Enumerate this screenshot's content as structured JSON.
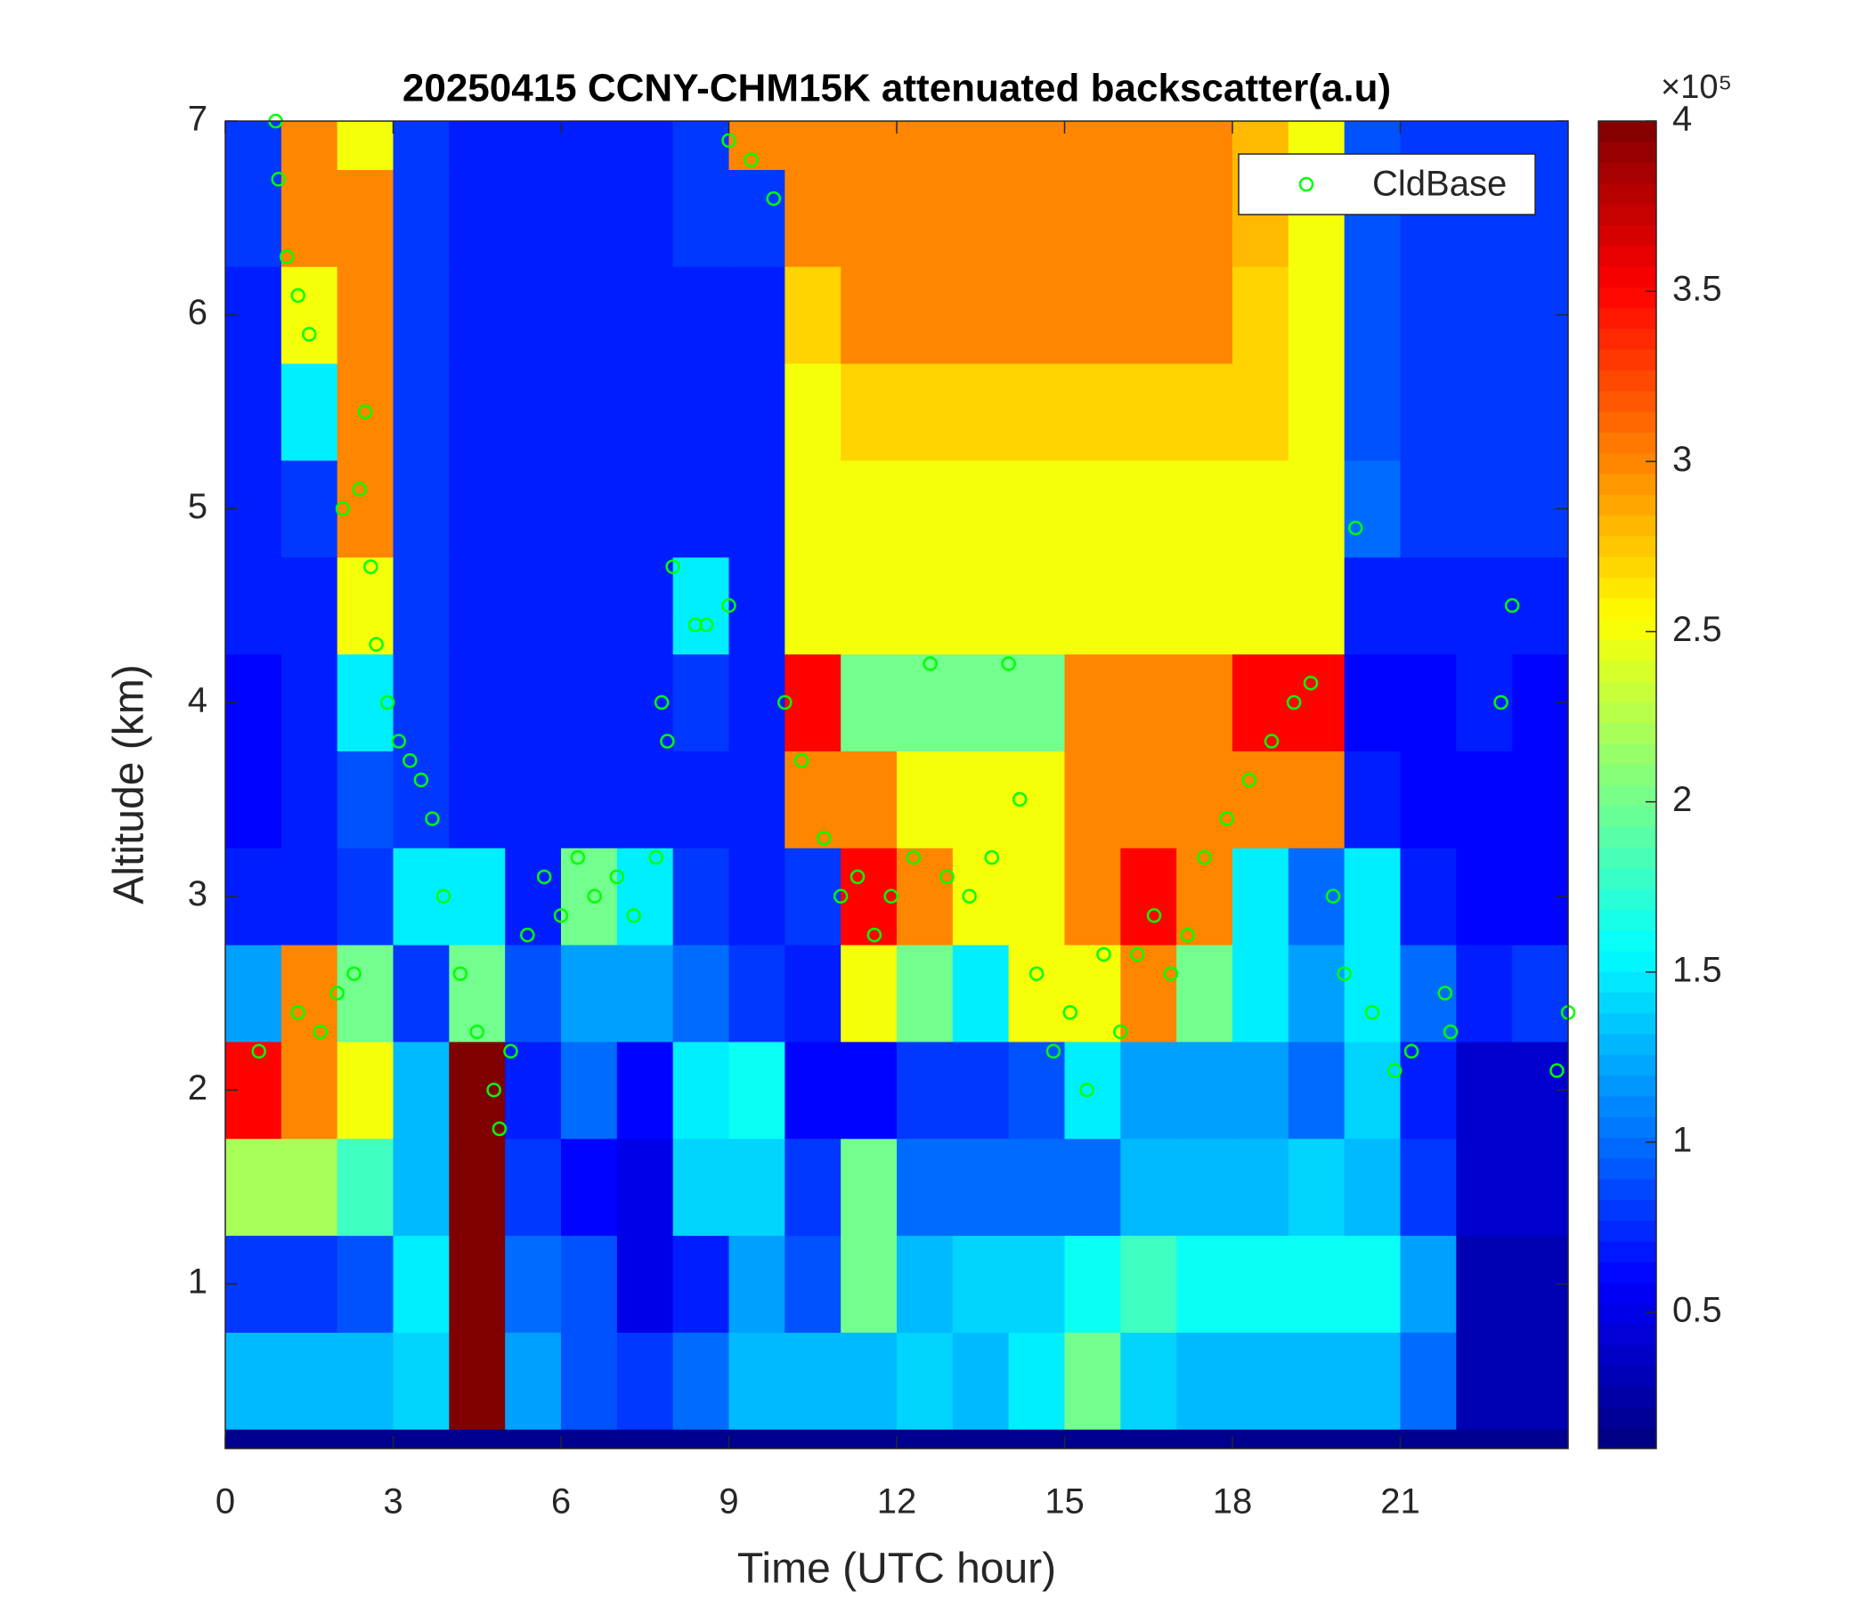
{
  "chart_data": {
    "type": "heatmap",
    "title": "20250415 CCNY-CHM15K attenuated backscatter(a.u)",
    "xlabel": "Time (UTC hour)",
    "ylabel": "Altitude (km)",
    "xlim": [
      0,
      24
    ],
    "xticks": [
      0,
      3,
      6,
      9,
      12,
      15,
      18,
      21
    ],
    "ylim": [
      0.15,
      7
    ],
    "yticks": [
      1,
      2,
      3,
      4,
      5,
      6,
      7
    ],
    "colormap": "jet",
    "clim": [
      0.1,
      4
    ],
    "cticks": [
      0.5,
      1,
      1.5,
      2,
      2.5,
      3,
      3.5,
      4
    ],
    "colorbar_exponent": "×10⁵",
    "x": [
      0.5,
      1.5,
      2.5,
      3.5,
      4.5,
      5.5,
      6.5,
      7.5,
      8.5,
      9.5,
      10.5,
      11.5,
      12.5,
      13.5,
      14.5,
      15.5,
      16.5,
      17.5,
      18.5,
      19.5,
      20.5,
      21.5,
      22.5,
      23.5
    ],
    "y": [
      0.5,
      1,
      1.5,
      2,
      2.5,
      3,
      3.5,
      4,
      4.5,
      5,
      5.5,
      6,
      6.5,
      7
    ],
    "z": [
      [
        1.3,
        1.3,
        1.3,
        1.4,
        4,
        1.2,
        0.9,
        0.8,
        1.0,
        1.3,
        1.3,
        1.3,
        1.4,
        1.3,
        1.5,
        2.0,
        1.4,
        1.3,
        1.3,
        1.3,
        1.3,
        1.0,
        0.3,
        0.3
      ],
      [
        0.8,
        0.8,
        0.9,
        1.5,
        4,
        1.0,
        0.9,
        0.5,
        0.7,
        1.2,
        0.9,
        2.0,
        1.3,
        1.4,
        1.4,
        1.6,
        1.8,
        1.6,
        1.6,
        1.6,
        1.6,
        1.2,
        0.3,
        0.3
      ],
      [
        2.2,
        2.2,
        1.8,
        1.3,
        4,
        0.8,
        0.6,
        0.5,
        1.4,
        1.4,
        0.8,
        2.0,
        1.0,
        1.0,
        1.0,
        1.0,
        1.3,
        1.3,
        1.3,
        1.4,
        1.3,
        0.8,
        0.4,
        0.4
      ],
      [
        3.5,
        3.0,
        2.5,
        1.3,
        4,
        0.7,
        1.0,
        0.6,
        1.5,
        1.6,
        0.6,
        0.6,
        0.8,
        0.8,
        0.9,
        1.5,
        1.2,
        1.2,
        1.2,
        1.0,
        1.4,
        0.7,
        0.4,
        0.4
      ],
      [
        1.2,
        3.0,
        2.0,
        0.8,
        2.0,
        0.9,
        1.2,
        1.2,
        1.0,
        0.8,
        0.7,
        2.5,
        2.0,
        1.5,
        2.5,
        2.5,
        3.0,
        2.0,
        1.5,
        1.2,
        1.5,
        1.0,
        0.7,
        0.8
      ],
      [
        0.7,
        0.7,
        0.8,
        1.5,
        1.5,
        0.7,
        2.0,
        1.5,
        0.8,
        0.7,
        0.8,
        3.5,
        3.0,
        2.5,
        2.5,
        3.0,
        3.5,
        3.0,
        1.5,
        1.0,
        1.5,
        0.7,
        0.6,
        0.6
      ],
      [
        0.6,
        0.7,
        0.9,
        0.8,
        0.7,
        0.7,
        0.7,
        0.7,
        0.7,
        0.7,
        3.0,
        3.0,
        2.5,
        2.5,
        2.5,
        3.0,
        3.0,
        3.0,
        3.0,
        3.0,
        0.7,
        0.6,
        0.6,
        0.6
      ],
      [
        0.6,
        0.7,
        1.5,
        0.8,
        0.7,
        0.7,
        0.7,
        0.7,
        0.8,
        0.7,
        3.5,
        2.0,
        2.0,
        2.0,
        2.0,
        3.0,
        3.0,
        3.0,
        3.5,
        3.5,
        0.6,
        0.6,
        0.7,
        0.6
      ],
      [
        0.7,
        0.7,
        2.5,
        0.8,
        0.7,
        0.7,
        0.7,
        0.7,
        1.5,
        0.7,
        2.5,
        2.5,
        2.5,
        2.5,
        2.5,
        2.5,
        2.5,
        2.5,
        2.5,
        2.5,
        0.7,
        0.7,
        0.7,
        0.7
      ],
      [
        0.7,
        0.8,
        3.0,
        0.8,
        0.7,
        0.7,
        0.7,
        0.7,
        0.7,
        0.7,
        2.5,
        2.5,
        2.5,
        2.5,
        2.5,
        2.5,
        2.5,
        2.5,
        2.5,
        2.5,
        1.0,
        0.8,
        0.8,
        0.8
      ],
      [
        0.7,
        1.5,
        3.0,
        0.8,
        0.7,
        0.7,
        0.7,
        0.7,
        0.7,
        0.7,
        2.5,
        2.7,
        2.7,
        2.7,
        2.7,
        2.7,
        2.7,
        2.7,
        2.7,
        2.5,
        0.9,
        0.8,
        0.8,
        0.8
      ],
      [
        0.7,
        2.5,
        3.0,
        0.8,
        0.7,
        0.7,
        0.7,
        0.7,
        0.7,
        0.7,
        2.7,
        3.0,
        3.0,
        3.0,
        3.0,
        3.0,
        3.0,
        3.0,
        2.7,
        2.5,
        0.9,
        0.8,
        0.8,
        0.8
      ],
      [
        0.8,
        3.0,
        3.0,
        0.8,
        0.7,
        0.7,
        0.7,
        0.7,
        0.8,
        0.8,
        3.0,
        3.0,
        3.0,
        3.0,
        3.0,
        3.0,
        3.0,
        3.0,
        2.8,
        2.5,
        0.9,
        0.8,
        0.8,
        0.8
      ],
      [
        0.8,
        3.0,
        2.5,
        0.8,
        0.7,
        0.7,
        0.7,
        0.7,
        0.8,
        3.0,
        3.0,
        3.0,
        3.0,
        3.0,
        3.0,
        3.0,
        3.0,
        3.0,
        2.8,
        2.5,
        0.9,
        0.8,
        0.8,
        0.8
      ]
    ],
    "series": [
      {
        "name": "CldBase",
        "color": "#00ff00",
        "type": "scatter",
        "x": [
          0.9,
          0.95,
          1.1,
          1.3,
          1.5,
          0.6,
          1.3,
          1.7,
          2.0,
          2.3,
          2.1,
          2.4,
          2.5,
          2.6,
          2.7,
          2.9,
          3.1,
          3.3,
          3.5,
          3.7,
          3.9,
          4.2,
          4.5,
          4.8,
          4.9,
          5.1,
          5.4,
          5.7,
          6.0,
          6.3,
          6.6,
          7.0,
          7.3,
          7.7,
          7.8,
          7.9,
          8.0,
          8.4,
          8.6,
          9.0,
          9.0,
          9.4,
          9.8,
          10.0,
          10.3,
          10.7,
          11.0,
          11.3,
          11.6,
          11.9,
          12.3,
          12.6,
          12.9,
          13.3,
          13.7,
          14.0,
          14.2,
          14.5,
          14.8,
          15.1,
          15.4,
          15.7,
          16.0,
          16.3,
          16.6,
          16.9,
          17.2,
          17.5,
          17.9,
          18.3,
          18.7,
          19.1,
          19.4,
          19.8,
          20.0,
          20.2,
          20.5,
          20.9,
          21.2,
          21.8,
          21.9,
          22.8,
          23.0,
          23.8,
          24.0
        ],
        "values": [
          7,
          6.7,
          6.3,
          6.1,
          5.9,
          2.2,
          2.4,
          2.3,
          2.5,
          2.6,
          5.0,
          5.1,
          5.5,
          4.7,
          4.3,
          4.0,
          3.8,
          3.7,
          3.6,
          3.4,
          3.0,
          2.6,
          2.3,
          2.0,
          1.8,
          2.2,
          2.8,
          3.1,
          2.9,
          3.2,
          3.0,
          3.1,
          2.9,
          3.2,
          4.0,
          3.8,
          4.7,
          4.4,
          4.4,
          4.5,
          6.9,
          6.8,
          6.6,
          4.0,
          3.7,
          3.3,
          3.0,
          3.1,
          2.8,
          3.0,
          3.2,
          4.2,
          3.1,
          3.0,
          3.2,
          4.2,
          3.5,
          2.6,
          2.2,
          2.4,
          2.0,
          2.7,
          2.3,
          2.7,
          2.9,
          2.6,
          2.8,
          3.2,
          3.4,
          3.6,
          3.8,
          4.0,
          4.1,
          3.0,
          2.6,
          4.9,
          2.4,
          2.1,
          2.2,
          2.5,
          2.3,
          4.0,
          4.5,
          2.1,
          2.4
        ]
      }
    ],
    "legend": "northeast"
  }
}
